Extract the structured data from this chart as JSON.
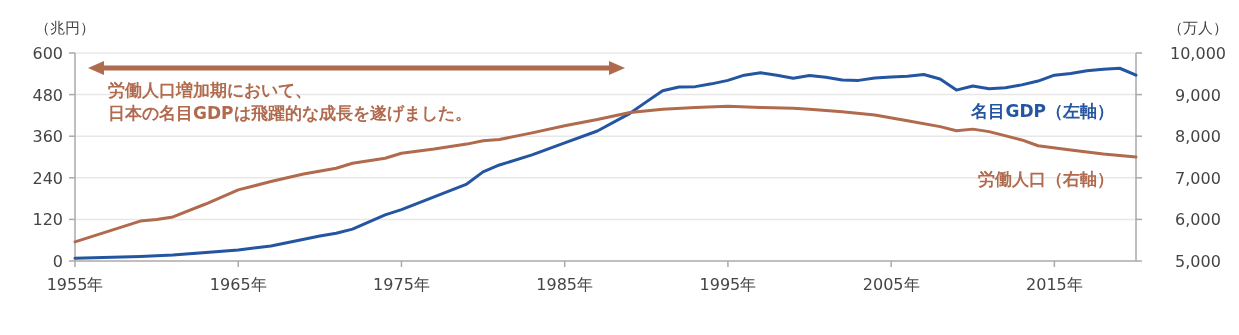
{
  "chart_data": {
    "type": "line",
    "ylabel": "（兆円）",
    "y2label": "（万人）",
    "x": [
      1955,
      1959,
      1961,
      1965,
      1967,
      1970,
      1971,
      1972,
      1974,
      1975,
      1977,
      1979,
      1980,
      1981,
      1983,
      1985,
      1987,
      1989,
      1990,
      1991,
      1992,
      1993,
      1994,
      1995,
      1996,
      1997,
      1998,
      1999,
      2000,
      2001,
      2002,
      2003,
      2004,
      2005,
      2006,
      2007,
      2008,
      2009,
      2010,
      2011,
      2012,
      2013,
      2014,
      2015,
      2016,
      2017,
      2018,
      2019,
      2020
    ],
    "series": [
      {
        "name": "名目GDP（左軸）",
        "color": "#2455a0",
        "values": [
          8,
          13,
          17,
          32,
          43,
          72,
          80,
          92,
          133,
          148,
          185,
          222,
          257,
          277,
          306,
          341,
          375,
          426,
          459,
          491,
          502,
          503,
          511,
          521,
          536,
          543,
          536,
          527,
          535,
          530,
          522,
          521,
          528,
          531,
          533,
          538,
          525,
          493,
          505,
          497,
          500,
          508,
          519,
          536,
          541,
          549,
          553,
          556,
          536
        ]
      },
      {
        "name": "労働人口（右軸）",
        "color": "#b06a4d",
        "axis": "y2",
        "x": [
          1955,
          1959,
          1960,
          1961,
          1963,
          1965,
          1967,
          1969,
          1971,
          1972,
          1974,
          1975,
          1977,
          1979,
          1980,
          1981,
          1983,
          1985,
          1987,
          1989,
          1991,
          1993,
          1995,
          1997,
          1999,
          2000,
          2002,
          2004,
          2006,
          2008,
          2009,
          2010,
          2011,
          2013,
          2014,
          2016,
          2018,
          2020
        ],
        "values": [
          5460,
          5960,
          6000,
          6060,
          6370,
          6710,
          6910,
          7090,
          7230,
          7350,
          7470,
          7590,
          7690,
          7810,
          7890,
          7920,
          8080,
          8250,
          8400,
          8570,
          8650,
          8690,
          8720,
          8690,
          8670,
          8650,
          8590,
          8510,
          8370,
          8230,
          8130,
          8170,
          8110,
          7910,
          7770,
          7670,
          7570,
          7500
        ]
      }
    ],
    "xlim": [
      1955,
      2020
    ],
    "xticks": [
      {
        "value": 1955,
        "label": "1955年"
      },
      {
        "value": 1965,
        "label": "1965年"
      },
      {
        "value": 1975,
        "label": "1975年"
      },
      {
        "value": 1985,
        "label": "1985年"
      },
      {
        "value": 1995,
        "label": "1995年"
      },
      {
        "value": 2005,
        "label": "2005年"
      },
      {
        "value": 2015,
        "label": "2015年"
      }
    ],
    "ylim": [
      0,
      600
    ],
    "yticks": [
      0,
      120,
      240,
      360,
      480,
      600
    ],
    "y2lim": [
      5000,
      10000
    ],
    "y2ticks": [
      {
        "value": 5000,
        "label": "5,000"
      },
      {
        "value": 6000,
        "label": "6,000"
      },
      {
        "value": 7000,
        "label": "7,000"
      },
      {
        "value": 8000,
        "label": "8,000"
      },
      {
        "value": 9000,
        "label": "9,000"
      },
      {
        "value": 10000,
        "label": "10,000"
      }
    ],
    "annotations": [
      "労働人口増加期において、",
      "日本の名目GDPは飛躍的な成長を遂げました。"
    ],
    "grid": "y",
    "legend": false,
    "marker": "none",
    "line_style": "solid"
  }
}
